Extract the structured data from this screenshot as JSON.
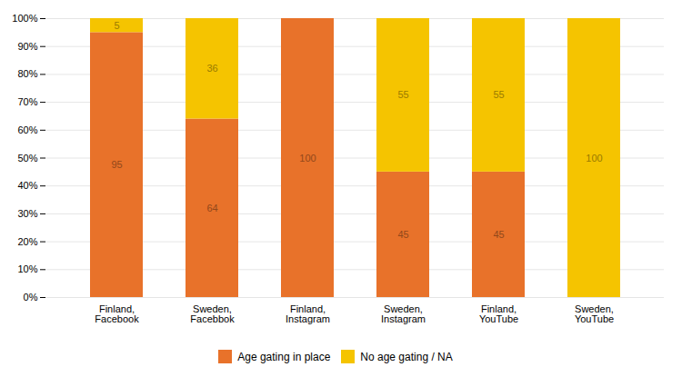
{
  "chart_data": {
    "type": "bar",
    "stacked": true,
    "categories": [
      "Finland,\nFacebook",
      "Sweden,\nFacebbok",
      "Finland,\nInstagram",
      "Sweden,\nInstagram",
      "Finland,\nYouTube",
      "Sweden,\nYouTube"
    ],
    "series": [
      {
        "name": "Age gating in place",
        "color": "#E8722A",
        "values": [
          95,
          64,
          100,
          45,
          45,
          0
        ]
      },
      {
        "name": "No age gating / NA",
        "color": "#F5C400",
        "values": [
          5,
          36,
          0,
          55,
          55,
          100
        ]
      }
    ],
    "ylim": [
      0,
      100
    ],
    "yticks": [
      {
        "value": 0,
        "label": "0%"
      },
      {
        "value": 10,
        "label": "10%"
      },
      {
        "value": 20,
        "label": "20%"
      },
      {
        "value": 30,
        "label": "30%"
      },
      {
        "value": 40,
        "label": "40%"
      },
      {
        "value": 50,
        "label": "50%"
      },
      {
        "value": 60,
        "label": "60%"
      },
      {
        "value": 70,
        "label": "70%"
      },
      {
        "value": 80,
        "label": "80%"
      },
      {
        "value": 90,
        "label": "90%"
      },
      {
        "value": 100,
        "label": "100%"
      }
    ],
    "grid": true,
    "data_labels": true,
    "legend": "bottom"
  }
}
